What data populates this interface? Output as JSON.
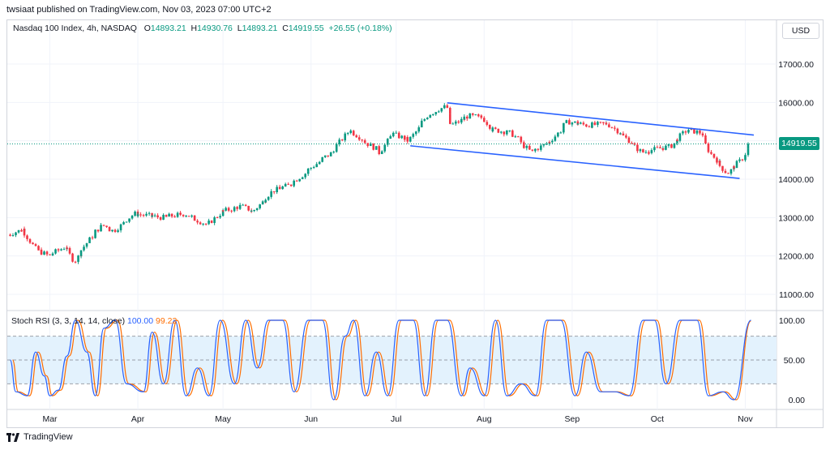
{
  "header": {
    "publisher_line": "twsiaat published on TradingView.com, Nov 03, 2023 07:00 UTC+2"
  },
  "legend": {
    "symbol": "Nasdaq 100 Index, 4h, NASDAQ",
    "o_label": "O",
    "o_value": "14893.21",
    "h_label": "H",
    "h_value": "14930.76",
    "l_label": "L",
    "l_value": "14893.21",
    "c_label": "C",
    "c_value": "14919.55",
    "change": "+26.55 (+0.18%)"
  },
  "currency_button": "USD",
  "last_price_tag": "14919.55",
  "indicator": {
    "name": "Stoch RSI (3, 3, 14, 14, close)",
    "k_value": "100.00",
    "d_value": "99.22"
  },
  "footer": {
    "brand": "TradingView"
  },
  "colors": {
    "up": "#089981",
    "down": "#f23645",
    "channel": "#2962ff",
    "k_line": "#2962ff",
    "d_line": "#ff6d00",
    "band_fill": "#e3f2fd"
  },
  "chart_data": [
    {
      "type": "candlestick",
      "title": "Nasdaq 100 Index, 4h, NASDAQ",
      "x_tick_labels": [
        "Mar",
        "Apr",
        "May",
        "Jun",
        "Jul",
        "Aug",
        "Sep",
        "Oct",
        "Nov"
      ],
      "y_tick_labels": [
        "11000.00",
        "12000.00",
        "13000.00",
        "14000.00",
        "15000.00",
        "16000.00",
        "17000.00"
      ],
      "ylim": [
        10500,
        17700
      ],
      "grid": true,
      "last_price": 14919.55,
      "close_path": [
        {
          "date": "2023-02-15",
          "close": 12550
        },
        {
          "date": "2023-02-20",
          "close": 12700
        },
        {
          "date": "2023-02-24",
          "close": 12200
        },
        {
          "date": "2023-03-01",
          "close": 12000
        },
        {
          "date": "2023-03-07",
          "close": 12250
        },
        {
          "date": "2023-03-10",
          "close": 11850
        },
        {
          "date": "2023-03-16",
          "close": 12500
        },
        {
          "date": "2023-03-20",
          "close": 12800
        },
        {
          "date": "2023-03-24",
          "close": 12650
        },
        {
          "date": "2023-03-31",
          "close": 13100
        },
        {
          "date": "2023-04-10",
          "close": 13000
        },
        {
          "date": "2023-04-18",
          "close": 13100
        },
        {
          "date": "2023-04-26",
          "close": 12800
        },
        {
          "date": "2023-05-01",
          "close": 13150
        },
        {
          "date": "2023-05-08",
          "close": 13300
        },
        {
          "date": "2023-05-12",
          "close": 13150
        },
        {
          "date": "2023-05-19",
          "close": 13700
        },
        {
          "date": "2023-05-25",
          "close": 13850
        },
        {
          "date": "2023-05-31",
          "close": 14200
        },
        {
          "date": "2023-06-05",
          "close": 14500
        },
        {
          "date": "2023-06-09",
          "close": 14700
        },
        {
          "date": "2023-06-15",
          "close": 15300
        },
        {
          "date": "2023-06-20",
          "close": 15000
        },
        {
          "date": "2023-06-26",
          "close": 14700
        },
        {
          "date": "2023-06-30",
          "close": 15200
        },
        {
          "date": "2023-07-06",
          "close": 15000
        },
        {
          "date": "2023-07-13",
          "close": 15700
        },
        {
          "date": "2023-07-19",
          "close": 15900
        },
        {
          "date": "2023-07-21",
          "close": 15400
        },
        {
          "date": "2023-07-27",
          "close": 15650
        },
        {
          "date": "2023-08-01",
          "close": 15600
        },
        {
          "date": "2023-08-04",
          "close": 15300
        },
        {
          "date": "2023-08-11",
          "close": 15200
        },
        {
          "date": "2023-08-18",
          "close": 14700
        },
        {
          "date": "2023-08-25",
          "close": 15000
        },
        {
          "date": "2023-08-31",
          "close": 15500
        },
        {
          "date": "2023-09-07",
          "close": 15400
        },
        {
          "date": "2023-09-14",
          "close": 15450
        },
        {
          "date": "2023-09-20",
          "close": 15100
        },
        {
          "date": "2023-09-26",
          "close": 14700
        },
        {
          "date": "2023-10-02",
          "close": 14800
        },
        {
          "date": "2023-10-06",
          "close": 14850
        },
        {
          "date": "2023-10-12",
          "close": 15300
        },
        {
          "date": "2023-10-17",
          "close": 15200
        },
        {
          "date": "2023-10-20",
          "close": 14700
        },
        {
          "date": "2023-10-26",
          "close": 14150
        },
        {
          "date": "2023-10-31",
          "close": 14500
        },
        {
          "date": "2023-11-03",
          "close": 14920
        }
      ],
      "channel_lines": [
        {
          "name": "upper",
          "points": [
            {
              "date": "2023-07-19",
              "price": 15990
            },
            {
              "date": "2023-11-04",
              "price": 15150
            }
          ]
        },
        {
          "name": "lower",
          "points": [
            {
              "date": "2023-07-06",
              "price": 14870
            },
            {
              "date": "2023-10-30",
              "price": 14020
            }
          ]
        }
      ]
    },
    {
      "type": "line",
      "title": "Stoch RSI (3, 3, 14, 14, close)",
      "y_tick_labels": [
        "100.00",
        "50.00",
        "0.00"
      ],
      "ylim": [
        -5,
        105
      ],
      "band": [
        20,
        80
      ],
      "midline": 50,
      "series": [
        {
          "name": "K",
          "last_value": 100.0
        },
        {
          "name": "D",
          "last_value": 99.22
        }
      ],
      "k_path": [
        {
          "date": "2023-02-15",
          "k": 50
        },
        {
          "date": "2023-02-17",
          "k": 10
        },
        {
          "date": "2023-02-21",
          "k": 5
        },
        {
          "date": "2023-02-24",
          "k": 60
        },
        {
          "date": "2023-02-27",
          "k": 30
        },
        {
          "date": "2023-03-01",
          "k": 5
        },
        {
          "date": "2023-03-04",
          "k": 12
        },
        {
          "date": "2023-03-07",
          "k": 55
        },
        {
          "date": "2023-03-10",
          "k": 100
        },
        {
          "date": "2023-03-14",
          "k": 60
        },
        {
          "date": "2023-03-17",
          "k": 5
        },
        {
          "date": "2023-03-20",
          "k": 90
        },
        {
          "date": "2023-03-24",
          "k": 100
        },
        {
          "date": "2023-03-28",
          "k": 20
        },
        {
          "date": "2023-04-03",
          "k": 10
        },
        {
          "date": "2023-04-06",
          "k": 85
        },
        {
          "date": "2023-04-10",
          "k": 20
        },
        {
          "date": "2023-04-14",
          "k": 100
        },
        {
          "date": "2023-04-18",
          "k": 5
        },
        {
          "date": "2023-04-22",
          "k": 40
        },
        {
          "date": "2023-04-26",
          "k": 5
        },
        {
          "date": "2023-04-30",
          "k": 100
        },
        {
          "date": "2023-05-05",
          "k": 20
        },
        {
          "date": "2023-05-09",
          "k": 100
        },
        {
          "date": "2023-05-13",
          "k": 40
        },
        {
          "date": "2023-05-17",
          "k": 100
        },
        {
          "date": "2023-05-22",
          "k": 100
        },
        {
          "date": "2023-05-26",
          "k": 10
        },
        {
          "date": "2023-05-31",
          "k": 100
        },
        {
          "date": "2023-06-05",
          "k": 100
        },
        {
          "date": "2023-06-09",
          "k": 0
        },
        {
          "date": "2023-06-13",
          "k": 80
        },
        {
          "date": "2023-06-16",
          "k": 100
        },
        {
          "date": "2023-06-20",
          "k": 5
        },
        {
          "date": "2023-06-24",
          "k": 60
        },
        {
          "date": "2023-06-28",
          "k": 5
        },
        {
          "date": "2023-07-02",
          "k": 100
        },
        {
          "date": "2023-07-07",
          "k": 100
        },
        {
          "date": "2023-07-11",
          "k": 5
        },
        {
          "date": "2023-07-15",
          "k": 100
        },
        {
          "date": "2023-07-19",
          "k": 100
        },
        {
          "date": "2023-07-24",
          "k": 5
        },
        {
          "date": "2023-07-27",
          "k": 40
        },
        {
          "date": "2023-08-01",
          "k": 5
        },
        {
          "date": "2023-08-05",
          "k": 100
        },
        {
          "date": "2023-08-09",
          "k": 5
        },
        {
          "date": "2023-08-14",
          "k": 20
        },
        {
          "date": "2023-08-19",
          "k": 5
        },
        {
          "date": "2023-08-23",
          "k": 100
        },
        {
          "date": "2023-08-28",
          "k": 100
        },
        {
          "date": "2023-09-02",
          "k": 5
        },
        {
          "date": "2023-09-06",
          "k": 60
        },
        {
          "date": "2023-09-11",
          "k": 10
        },
        {
          "date": "2023-09-16",
          "k": 10
        },
        {
          "date": "2023-09-21",
          "k": 5
        },
        {
          "date": "2023-09-26",
          "k": 100
        },
        {
          "date": "2023-09-30",
          "k": 100
        },
        {
          "date": "2023-10-04",
          "k": 20
        },
        {
          "date": "2023-10-09",
          "k": 100
        },
        {
          "date": "2023-10-15",
          "k": 100
        },
        {
          "date": "2023-10-19",
          "k": 5
        },
        {
          "date": "2023-10-24",
          "k": 10
        },
        {
          "date": "2023-10-28",
          "k": 0
        },
        {
          "date": "2023-11-03",
          "k": 100
        }
      ]
    }
  ]
}
